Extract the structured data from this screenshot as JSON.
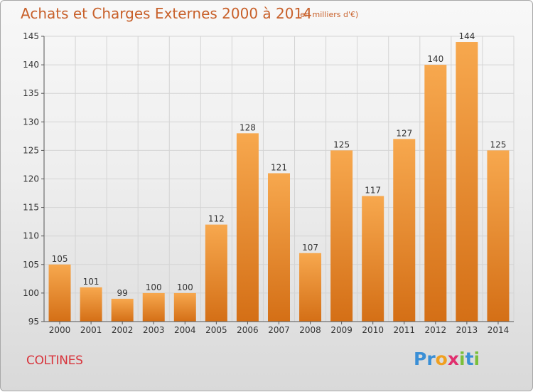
{
  "header": {
    "title": "Achats et Charges Externes 2000 à 2014",
    "subtitle": "(en milliers d'€)"
  },
  "footer": {
    "commune": "COLTINES",
    "brand": "Proxiti",
    "brand_letters": [
      "P",
      "r",
      "o",
      "x",
      "i",
      "t",
      "i"
    ],
    "brand_colors": [
      "#3a8fd6",
      "#3a8fd6",
      "#f0a020",
      "#e02f6e",
      "#7abf3a",
      "#3a8fd6",
      "#7abf3a"
    ]
  },
  "chart_data": {
    "type": "bar",
    "categories": [
      "2000",
      "2001",
      "2002",
      "2003",
      "2004",
      "2005",
      "2006",
      "2007",
      "2008",
      "2009",
      "2010",
      "2011",
      "2012",
      "2013",
      "2014"
    ],
    "values": [
      105,
      101,
      99,
      100,
      100,
      112,
      128,
      121,
      107,
      125,
      117,
      127,
      140,
      144,
      125
    ],
    "title": "Achats et Charges Externes 2000 à 2014",
    "subtitle": "(en milliers d'€)",
    "ylim": [
      95,
      145
    ],
    "yticks": [
      95,
      100,
      105,
      110,
      115,
      120,
      125,
      130,
      135,
      140,
      145
    ],
    "grid": true,
    "bar_color_top": "#f7a84e",
    "bar_color_bottom": "#d46f16",
    "grid_color": "#d4d4d4",
    "text_color": "#333333"
  }
}
